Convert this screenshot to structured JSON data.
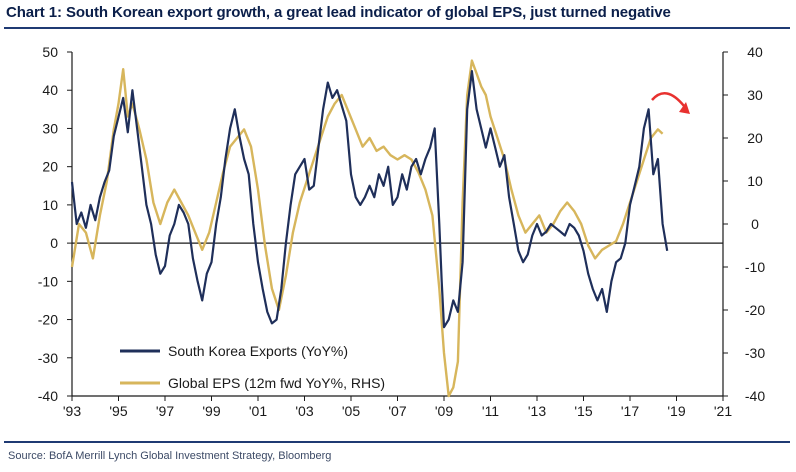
{
  "title": "Chart 1: South Korean export growth, a great lead indicator of global EPS, just turned negative",
  "source": "Source:   BofA Merrill Lynch Global Investment Strategy, Bloomberg",
  "chart_data": {
    "type": "line",
    "x_ticks": [
      "'93",
      "'95",
      "'97",
      "'99",
      "'01",
      "'03",
      "'05",
      "'07",
      "'09",
      "'11",
      "'13",
      "'15",
      "'17",
      "'19",
      "'21"
    ],
    "xlim": [
      1993,
      2021
    ],
    "ylim_left": [
      -40,
      50
    ],
    "yticks_left": [
      50,
      40,
      30,
      20,
      10,
      0,
      -10,
      -20,
      -30,
      -40
    ],
    "ylim_right": [
      -40,
      40
    ],
    "yticks_right": [
      40,
      30,
      20,
      10,
      0,
      -10,
      -20,
      -30,
      -40
    ],
    "legend_position": "bottom-left",
    "annotation": "red downward-curving arrow near 2018",
    "colors": {
      "exports": "#1f2f5a",
      "eps": "#d7b65c",
      "arrow": "#e8312f",
      "axis": "#1a1a1a"
    },
    "series": [
      {
        "name": "South Korea Exports (YoY%)",
        "axis": "left",
        "points": [
          [
            1993.0,
            16
          ],
          [
            1993.2,
            5
          ],
          [
            1993.4,
            8
          ],
          [
            1993.6,
            4
          ],
          [
            1993.8,
            10
          ],
          [
            1994.0,
            6
          ],
          [
            1994.2,
            12
          ],
          [
            1994.4,
            16
          ],
          [
            1994.6,
            19
          ],
          [
            1994.8,
            28
          ],
          [
            1995.0,
            33
          ],
          [
            1995.2,
            38
          ],
          [
            1995.4,
            29
          ],
          [
            1995.6,
            40
          ],
          [
            1995.8,
            30
          ],
          [
            1996.0,
            20
          ],
          [
            1996.2,
            10
          ],
          [
            1996.4,
            5
          ],
          [
            1996.6,
            -3
          ],
          [
            1996.8,
            -8
          ],
          [
            1997.0,
            -6
          ],
          [
            1997.2,
            2
          ],
          [
            1997.4,
            5
          ],
          [
            1997.6,
            10
          ],
          [
            1997.8,
            8
          ],
          [
            1998.0,
            5
          ],
          [
            1998.2,
            -4
          ],
          [
            1998.4,
            -10
          ],
          [
            1998.6,
            -15
          ],
          [
            1998.8,
            -8
          ],
          [
            1999.0,
            -5
          ],
          [
            1999.2,
            5
          ],
          [
            1999.4,
            12
          ],
          [
            1999.6,
            22
          ],
          [
            1999.8,
            30
          ],
          [
            2000.0,
            35
          ],
          [
            2000.2,
            28
          ],
          [
            2000.4,
            22
          ],
          [
            2000.6,
            18
          ],
          [
            2000.8,
            5
          ],
          [
            2001.0,
            -5
          ],
          [
            2001.2,
            -12
          ],
          [
            2001.4,
            -18
          ],
          [
            2001.6,
            -21
          ],
          [
            2001.8,
            -20
          ],
          [
            2002.0,
            -12
          ],
          [
            2002.2,
            0
          ],
          [
            2002.4,
            10
          ],
          [
            2002.6,
            18
          ],
          [
            2002.8,
            20
          ],
          [
            2003.0,
            22
          ],
          [
            2003.2,
            14
          ],
          [
            2003.4,
            15
          ],
          [
            2003.6,
            25
          ],
          [
            2003.8,
            35
          ],
          [
            2004.0,
            42
          ],
          [
            2004.2,
            38
          ],
          [
            2004.4,
            40
          ],
          [
            2004.6,
            36
          ],
          [
            2004.8,
            32
          ],
          [
            2005.0,
            18
          ],
          [
            2005.2,
            12
          ],
          [
            2005.4,
            10
          ],
          [
            2005.6,
            12
          ],
          [
            2005.8,
            15
          ],
          [
            2006.0,
            12
          ],
          [
            2006.2,
            18
          ],
          [
            2006.4,
            15
          ],
          [
            2006.6,
            20
          ],
          [
            2006.8,
            10
          ],
          [
            2007.0,
            12
          ],
          [
            2007.2,
            18
          ],
          [
            2007.4,
            14
          ],
          [
            2007.6,
            20
          ],
          [
            2007.8,
            22
          ],
          [
            2008.0,
            18
          ],
          [
            2008.2,
            22
          ],
          [
            2008.4,
            25
          ],
          [
            2008.6,
            30
          ],
          [
            2008.8,
            5
          ],
          [
            2008.9,
            -10
          ],
          [
            2009.0,
            -22
          ],
          [
            2009.2,
            -20
          ],
          [
            2009.4,
            -15
          ],
          [
            2009.6,
            -18
          ],
          [
            2009.8,
            -5
          ],
          [
            2010.0,
            35
          ],
          [
            2010.2,
            45
          ],
          [
            2010.4,
            35
          ],
          [
            2010.6,
            30
          ],
          [
            2010.8,
            25
          ],
          [
            2011.0,
            30
          ],
          [
            2011.2,
            25
          ],
          [
            2011.4,
            20
          ],
          [
            2011.6,
            23
          ],
          [
            2011.8,
            12
          ],
          [
            2012.0,
            5
          ],
          [
            2012.2,
            -2
          ],
          [
            2012.4,
            -5
          ],
          [
            2012.6,
            -3
          ],
          [
            2012.8,
            2
          ],
          [
            2013.0,
            5
          ],
          [
            2013.2,
            2
          ],
          [
            2013.4,
            3
          ],
          [
            2013.6,
            5
          ],
          [
            2013.8,
            4
          ],
          [
            2014.0,
            3
          ],
          [
            2014.2,
            2
          ],
          [
            2014.4,
            5
          ],
          [
            2014.6,
            4
          ],
          [
            2014.8,
            2
          ],
          [
            2015.0,
            -2
          ],
          [
            2015.2,
            -8
          ],
          [
            2015.4,
            -12
          ],
          [
            2015.6,
            -15
          ],
          [
            2015.8,
            -12
          ],
          [
            2016.0,
            -18
          ],
          [
            2016.2,
            -10
          ],
          [
            2016.4,
            -5
          ],
          [
            2016.6,
            -4
          ],
          [
            2016.8,
            0
          ],
          [
            2017.0,
            10
          ],
          [
            2017.2,
            15
          ],
          [
            2017.4,
            20
          ],
          [
            2017.6,
            30
          ],
          [
            2017.8,
            35
          ],
          [
            2018.0,
            18
          ],
          [
            2018.2,
            22
          ],
          [
            2018.4,
            5
          ],
          [
            2018.6,
            -2
          ]
        ]
      },
      {
        "name": "Global EPS (12m fwd YoY%, RHS)",
        "axis": "right",
        "points": [
          [
            1993.0,
            -10
          ],
          [
            1993.3,
            0
          ],
          [
            1993.6,
            -2
          ],
          [
            1993.9,
            -8
          ],
          [
            1994.2,
            2
          ],
          [
            1994.5,
            10
          ],
          [
            1994.8,
            22
          ],
          [
            1995.0,
            28
          ],
          [
            1995.2,
            36
          ],
          [
            1995.4,
            25
          ],
          [
            1995.6,
            28
          ],
          [
            1995.9,
            22
          ],
          [
            1996.2,
            15
          ],
          [
            1996.5,
            5
          ],
          [
            1996.8,
            0
          ],
          [
            1997.1,
            5
          ],
          [
            1997.4,
            8
          ],
          [
            1997.7,
            5
          ],
          [
            1998.0,
            2
          ],
          [
            1998.3,
            -2
          ],
          [
            1998.6,
            -6
          ],
          [
            1998.9,
            -2
          ],
          [
            1999.2,
            5
          ],
          [
            1999.5,
            12
          ],
          [
            1999.8,
            18
          ],
          [
            2000.1,
            20
          ],
          [
            2000.4,
            22
          ],
          [
            2000.7,
            18
          ],
          [
            2001.0,
            8
          ],
          [
            2001.3,
            -5
          ],
          [
            2001.6,
            -15
          ],
          [
            2001.9,
            -20
          ],
          [
            2002.2,
            -12
          ],
          [
            2002.5,
            -2
          ],
          [
            2002.8,
            5
          ],
          [
            2003.1,
            10
          ],
          [
            2003.4,
            15
          ],
          [
            2003.7,
            20
          ],
          [
            2004.0,
            25
          ],
          [
            2004.3,
            28
          ],
          [
            2004.6,
            30
          ],
          [
            2004.9,
            26
          ],
          [
            2005.2,
            22
          ],
          [
            2005.5,
            18
          ],
          [
            2005.8,
            20
          ],
          [
            2006.1,
            17
          ],
          [
            2006.4,
            18
          ],
          [
            2006.7,
            16
          ],
          [
            2007.0,
            15
          ],
          [
            2007.3,
            16
          ],
          [
            2007.6,
            15
          ],
          [
            2007.9,
            12
          ],
          [
            2008.2,
            8
          ],
          [
            2008.5,
            2
          ],
          [
            2008.8,
            -15
          ],
          [
            2009.0,
            -30
          ],
          [
            2009.2,
            -40
          ],
          [
            2009.4,
            -38
          ],
          [
            2009.6,
            -32
          ],
          [
            2009.8,
            5
          ],
          [
            2010.0,
            30
          ],
          [
            2010.2,
            38
          ],
          [
            2010.4,
            35
          ],
          [
            2010.6,
            32
          ],
          [
            2010.8,
            30
          ],
          [
            2011.0,
            25
          ],
          [
            2011.3,
            20
          ],
          [
            2011.6,
            15
          ],
          [
            2011.9,
            8
          ],
          [
            2012.2,
            2
          ],
          [
            2012.5,
            -2
          ],
          [
            2012.8,
            0
          ],
          [
            2013.1,
            2
          ],
          [
            2013.4,
            -2
          ],
          [
            2013.7,
            0
          ],
          [
            2014.0,
            3
          ],
          [
            2014.3,
            5
          ],
          [
            2014.6,
            3
          ],
          [
            2014.9,
            0
          ],
          [
            2015.2,
            -5
          ],
          [
            2015.5,
            -8
          ],
          [
            2015.8,
            -6
          ],
          [
            2016.1,
            -5
          ],
          [
            2016.4,
            -4
          ],
          [
            2016.7,
            0
          ],
          [
            2017.0,
            5
          ],
          [
            2017.3,
            10
          ],
          [
            2017.6,
            15
          ],
          [
            2017.9,
            20
          ],
          [
            2018.2,
            22
          ],
          [
            2018.4,
            21
          ]
        ]
      }
    ]
  }
}
